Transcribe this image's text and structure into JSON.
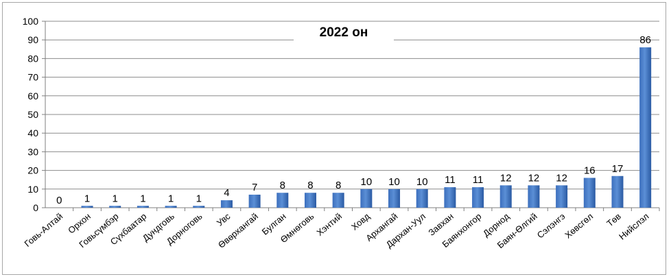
{
  "chart_data": {
    "type": "bar",
    "title": "2022 он",
    "categories": [
      "Говь-Алтай",
      "Орхон",
      "Говьсүмбэр",
      "Сүхбаатар",
      "Дундговь",
      "Дорноговь",
      "Увс",
      "Өвөрхангай",
      "Булган",
      "Өмнөговь",
      "Хэнтий",
      "Ховд",
      "Архангай",
      "Дархан-Уул",
      "Завхан",
      "Баянхонгор",
      "Дорнод",
      "Баян-Өлгий",
      "Сэлэнгэ",
      "Хөвсгөл",
      "Төв",
      "Нийслэл"
    ],
    "values": [
      0,
      1,
      1,
      1,
      1,
      1,
      4,
      7,
      8,
      8,
      8,
      10,
      10,
      10,
      11,
      11,
      12,
      12,
      12,
      16,
      17,
      86
    ],
    "ylim": [
      0,
      100
    ],
    "yticks": [
      0,
      10,
      20,
      30,
      40,
      50,
      60,
      70,
      80,
      90,
      100
    ],
    "grid": true,
    "legend": "none",
    "colors": {
      "bar_light": "#5b8fd6",
      "bar_dark": "#1f4f93",
      "gridline": "#8c8c8c",
      "axis": "#7f7f7f"
    }
  }
}
